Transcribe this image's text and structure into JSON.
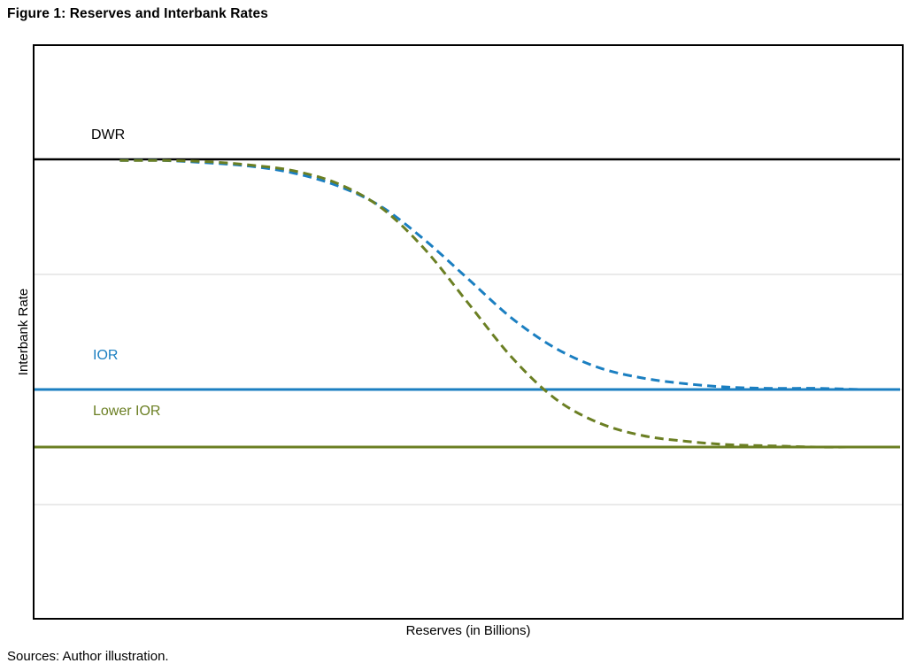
{
  "page": {
    "title": "Figure 1: Reserves and Interbank Rates",
    "source_note": "Sources: Author illustration."
  },
  "chart_data": {
    "type": "line",
    "title": "Figure 1: Reserves and Interbank Rates",
    "xlabel": "Reserves (in Billions)",
    "ylabel": "Interbank Rate",
    "xlim": [
      0,
      100
    ],
    "ylim": [
      0,
      5
    ],
    "axes_ticks_visible": false,
    "legend": "none",
    "grid": {
      "y_values": [
        1,
        2,
        3,
        4
      ],
      "color": "#eaeaea"
    },
    "hlines": [
      {
        "name": "DWR",
        "label": "DWR",
        "value": 4.0,
        "color": "#000000",
        "width": 2.5
      },
      {
        "name": "IOR",
        "label": "IOR",
        "value": 2.0,
        "color": "#1b7fc1",
        "width": 3
      },
      {
        "name": "Lower IOR",
        "label": "Lower IOR",
        "value": 1.5,
        "color": "#6b7f23",
        "width": 3
      }
    ],
    "series": [
      {
        "name": "IOR",
        "style": "dashed",
        "color": "#1b7fc1",
        "x": [
          10,
          15,
          20,
          25,
          30,
          35,
          40,
          45,
          50,
          55,
          60,
          65,
          70,
          75,
          80,
          85,
          90,
          95
        ],
        "y": [
          3.99,
          3.99,
          3.97,
          3.94,
          3.88,
          3.77,
          3.59,
          3.3,
          2.96,
          2.62,
          2.36,
          2.19,
          2.1,
          2.05,
          2.02,
          2.01,
          2.01,
          2.0
        ]
      },
      {
        "name": "Lower IOR",
        "style": "dashed",
        "color": "#6b7f23",
        "x": [
          10,
          15,
          20,
          25,
          30,
          35,
          40,
          45,
          50,
          55,
          60,
          65,
          70,
          75,
          80,
          85,
          90,
          95
        ],
        "y": [
          3.99,
          3.99,
          3.98,
          3.95,
          3.9,
          3.79,
          3.58,
          3.22,
          2.75,
          2.28,
          1.92,
          1.71,
          1.6,
          1.55,
          1.52,
          1.51,
          1.5,
          1.5
        ]
      }
    ]
  }
}
